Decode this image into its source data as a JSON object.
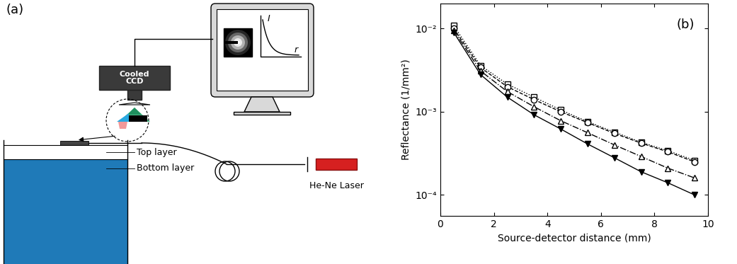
{
  "diagram": {
    "panel_label": "(a)",
    "camera": "Cooled\nCCD",
    "top_layer": "Top layer",
    "bottom_layer": "Bottom layer",
    "laser": "He-Ne Laser",
    "screen_y_label": "I",
    "screen_x_label": "r"
  },
  "chart_data": {
    "type": "line",
    "annotation": "(b)",
    "x_label": "Source-detector distance (mm)",
    "y_label": "Reflectance (1/mm²)",
    "log": "y",
    "x": [
      0.5,
      1.5,
      2.5,
      3.5,
      4.5,
      5.5,
      6.5,
      7.5,
      8.5,
      9.5
    ],
    "series": [
      {
        "color": "#000000",
        "marker": "open_square",
        "line_style": "dotted",
        "values": [
          0.0108,
          0.0036,
          0.00215,
          0.0015,
          0.00105,
          0.00076,
          0.00057,
          0.00043,
          0.00034,
          0.00026
        ]
      },
      {
        "color": "#000000",
        "marker": "open_circle",
        "line_style": "dashed",
        "values": [
          0.01,
          0.0034,
          0.002,
          0.0014,
          0.001,
          0.00074,
          0.00055,
          0.00042,
          0.00033,
          0.00025
        ]
      },
      {
        "color": "#000000",
        "marker": "open_triangle_up",
        "line_style": "dashdot",
        "values": [
          0.0095,
          0.0031,
          0.00175,
          0.00115,
          0.00078,
          0.00056,
          0.0004,
          0.00029,
          0.00021,
          0.00016
        ]
      },
      {
        "color": "#000000",
        "marker": "filled_triangle_down",
        "line_style": "solid",
        "values": [
          0.009,
          0.0028,
          0.0015,
          0.00092,
          0.00062,
          0.00041,
          0.00028,
          0.00019,
          0.00014,
          0.0001
        ]
      }
    ],
    "xlim": [
      0,
      10
    ],
    "xticks": [
      0,
      2,
      4,
      6,
      8,
      10
    ],
    "ylim": [
      5.6e-05,
      0.02
    ],
    "yticks": [
      {
        "value": 0.0001,
        "label": "10⁻⁴"
      },
      {
        "value": 0.001,
        "label": "10⁻³"
      },
      {
        "value": 0.01,
        "label": "10⁻²"
      }
    ]
  }
}
